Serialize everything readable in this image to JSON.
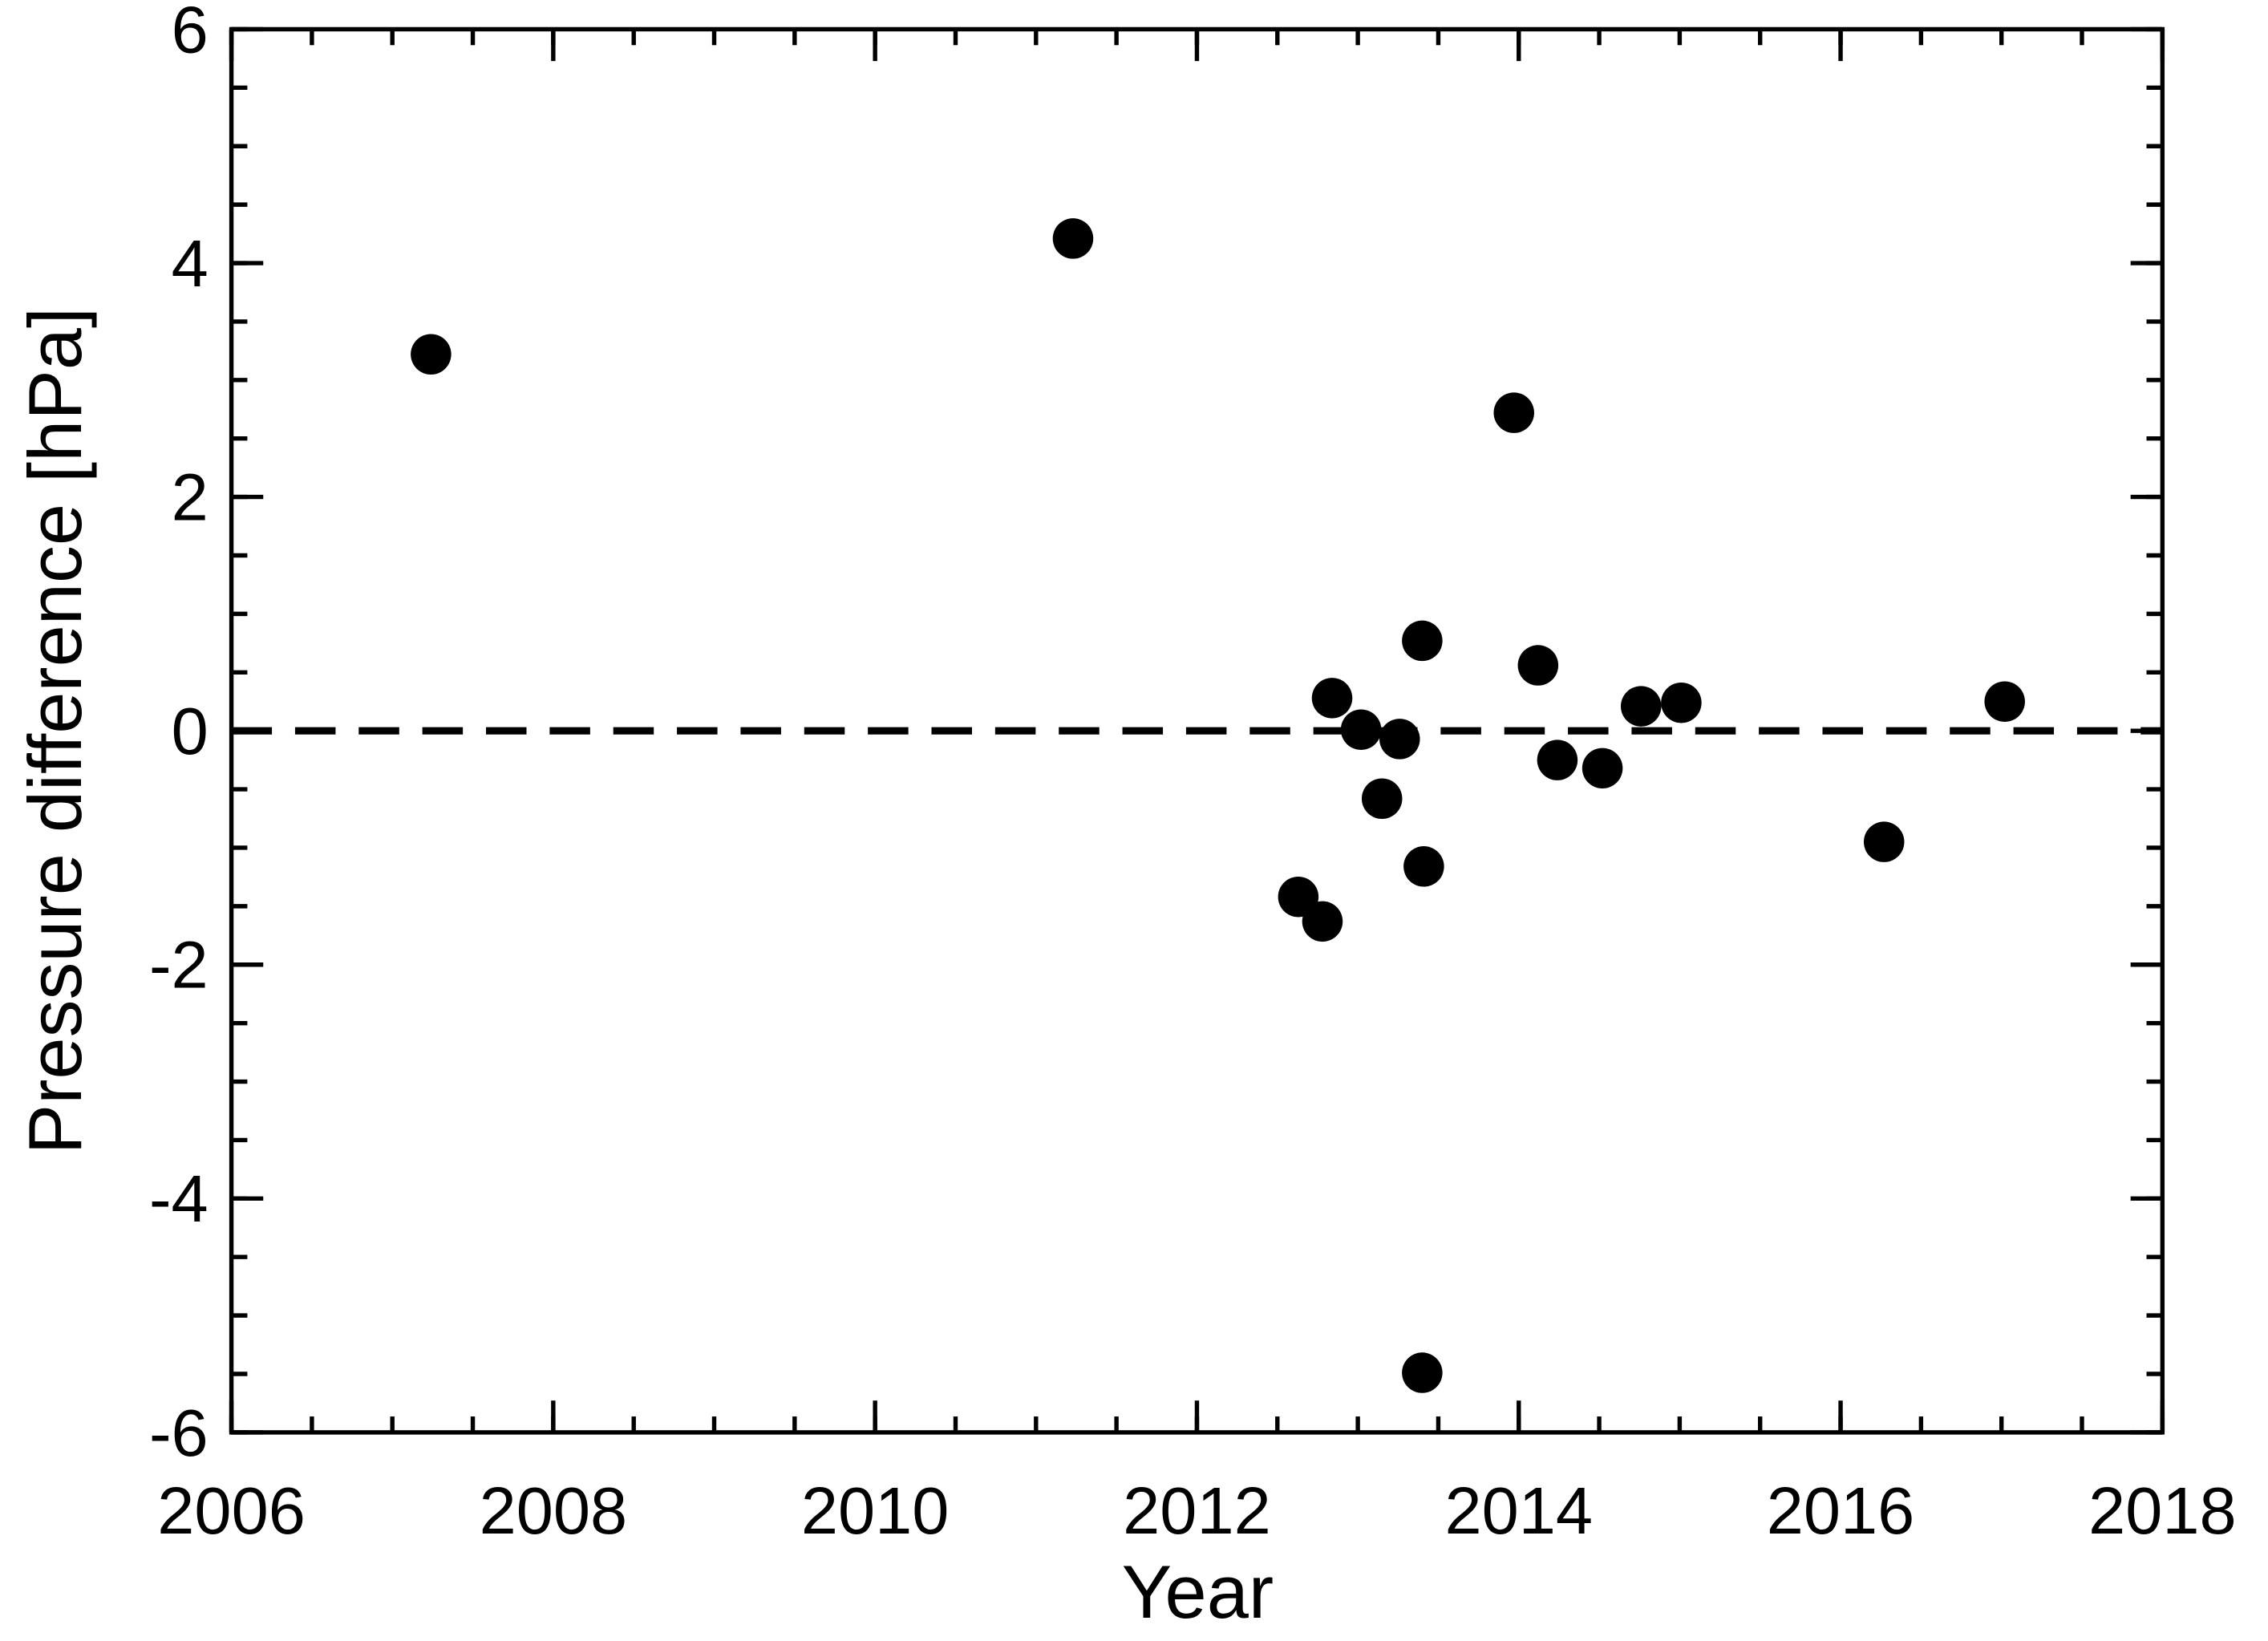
{
  "chart_data": {
    "type": "scatter",
    "x_label": "Year",
    "y_label": "Pressure difference [hPa]",
    "x": [
      2007.24,
      2011.23,
      2012.63,
      2012.78,
      2012.84,
      2013.02,
      2013.15,
      2013.26,
      2013.4,
      2013.41,
      2013.4,
      2013.97,
      2014.12,
      2014.24,
      2014.52,
      2014.76,
      2015.01,
      2016.27,
      2017.02
    ],
    "values": [
      3.22,
      4.21,
      -1.42,
      -1.63,
      0.28,
      0.01,
      -0.58,
      -0.07,
      0.77,
      -1.16,
      -5.49,
      2.72,
      0.56,
      -0.25,
      -0.32,
      0.21,
      0.24,
      -0.95,
      0.25
    ],
    "color": "#000000",
    "xlim": [
      2006,
      2018
    ],
    "xticks": [
      2006,
      2008,
      2010,
      2012,
      2014,
      2016,
      2018
    ],
    "xminor_step": 0.5,
    "ylim": [
      -6,
      6
    ],
    "yticks": [
      -6,
      -4,
      -2,
      0,
      2,
      4,
      6
    ],
    "yminor_step": 0.5,
    "hline": 0,
    "grid": false
  }
}
